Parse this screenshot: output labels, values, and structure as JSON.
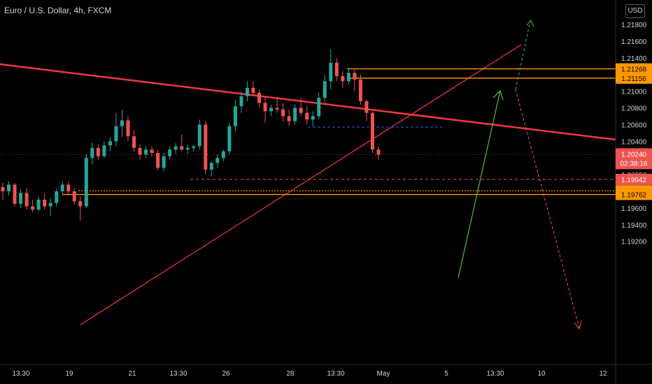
{
  "header": {
    "title": "Euro / U.S. Dollar, 4h, FXCM",
    "currency": "USD"
  },
  "colors": {
    "background": "#000000",
    "bull": "#26a69a",
    "bear": "#ef5350",
    "trendline": "#f23645",
    "orange": "#ff9800",
    "green": "#4caf50",
    "blue": "#2962ff",
    "text": "#d1d4dc"
  },
  "chart_data": {
    "type": "candlestick",
    "title": "Euro / U.S. Dollar, 4h, FXCM",
    "ylim": [
      1.191,
      1.2195
    ],
    "y_ticks": [
      "1.21800",
      "1.21600",
      "1.21400",
      "1.21200",
      "1.21000",
      "1.20800",
      "1.20600",
      "1.20400",
      "1.20200",
      "1.20000",
      "1.19800",
      "1.19600",
      "1.19400",
      "1.19200"
    ],
    "x_ticks": [
      "13:30",
      "19",
      "21",
      "13:30",
      "26",
      "28",
      "13:30",
      "May",
      "5",
      "13:30",
      "10",
      "12"
    ],
    "candles": [
      [
        1.1985,
        1.199,
        1.197,
        1.198
      ],
      [
        1.198,
        1.1992,
        1.1975,
        1.1988
      ],
      [
        1.1988,
        1.199,
        1.1962,
        1.1965
      ],
      [
        1.1965,
        1.1982,
        1.196,
        1.1978
      ],
      [
        1.1978,
        1.1984,
        1.1958,
        1.1962
      ],
      [
        1.1962,
        1.197,
        1.1955,
        1.1958
      ],
      [
        1.1958,
        1.1974,
        1.1956,
        1.197
      ],
      [
        1.197,
        1.1978,
        1.1958,
        1.1962
      ],
      [
        1.1962,
        1.1972,
        1.195,
        1.1966
      ],
      [
        1.1966,
        1.1983,
        1.1962,
        1.198
      ],
      [
        1.198,
        1.1992,
        1.1975,
        1.1988
      ],
      [
        1.1988,
        1.1992,
        1.1975,
        1.198
      ],
      [
        1.198,
        1.1984,
        1.1964,
        1.1968
      ],
      [
        1.1968,
        1.1974,
        1.1945,
        1.1962
      ],
      [
        1.1962,
        1.2025,
        1.196,
        1.202
      ],
      [
        1.202,
        1.2038,
        1.2012,
        1.2032
      ],
      [
        1.2032,
        1.2036,
        1.2018,
        1.2022
      ],
      [
        1.2022,
        1.204,
        1.202,
        1.2035
      ],
      [
        1.2035,
        1.2045,
        1.2028,
        1.204
      ],
      [
        1.204,
        1.2074,
        1.2034,
        1.2058
      ],
      [
        1.2058,
        1.2078,
        1.2045,
        1.2065
      ],
      [
        1.2065,
        1.207,
        1.204,
        1.2046
      ],
      [
        1.2046,
        1.2054,
        1.2028,
        1.2032
      ],
      [
        1.2032,
        1.2036,
        1.2018,
        1.2024
      ],
      [
        1.2024,
        1.2034,
        1.202,
        1.203
      ],
      [
        1.203,
        1.2034,
        1.2022,
        1.2026
      ],
      [
        1.2026,
        1.203,
        1.2005,
        1.2008
      ],
      [
        1.2008,
        1.2026,
        1.2004,
        1.2022
      ],
      [
        1.2022,
        1.2034,
        1.2018,
        1.203
      ],
      [
        1.203,
        1.2038,
        1.2025,
        1.2034
      ],
      [
        1.2034,
        1.2048,
        1.2028,
        1.203
      ],
      [
        1.203,
        1.2036,
        1.2025,
        1.2032
      ],
      [
        1.2032,
        1.2036,
        1.2028,
        1.2034
      ],
      [
        1.2034,
        1.2066,
        1.203,
        1.206
      ],
      [
        1.206,
        1.2064,
        1.2,
        1.2006
      ],
      [
        1.2006,
        1.2016,
        1.1998,
        1.2014
      ],
      [
        1.2014,
        1.2024,
        1.2008,
        1.202
      ],
      [
        1.202,
        1.203,
        1.2016,
        1.2028
      ],
      [
        1.2028,
        1.2062,
        1.2024,
        1.2058
      ],
      [
        1.2058,
        1.209,
        1.2052,
        1.2082
      ],
      [
        1.2082,
        1.21,
        1.2074,
        1.2094
      ],
      [
        1.2094,
        1.2112,
        1.2088,
        1.2104
      ],
      [
        1.2104,
        1.2112,
        1.2094,
        1.2098
      ],
      [
        1.2098,
        1.2102,
        1.208,
        1.2086
      ],
      [
        1.2086,
        1.2094,
        1.2062,
        1.2076
      ],
      [
        1.2076,
        1.2084,
        1.207,
        1.208
      ],
      [
        1.208,
        1.2092,
        1.2074,
        1.2078
      ],
      [
        1.2078,
        1.2086,
        1.2064,
        1.207
      ],
      [
        1.207,
        1.2078,
        1.2058,
        1.2064
      ],
      [
        1.2064,
        1.2084,
        1.206,
        1.208
      ],
      [
        1.208,
        1.2092,
        1.207,
        1.2074
      ],
      [
        1.2074,
        1.2082,
        1.206,
        1.2066
      ],
      [
        1.2066,
        1.2076,
        1.2058,
        1.207
      ],
      [
        1.207,
        1.2098,
        1.2066,
        1.2092
      ],
      [
        1.2092,
        1.212,
        1.2086,
        1.2112
      ],
      [
        1.2112,
        1.215,
        1.2102,
        1.2134
      ],
      [
        1.2134,
        1.214,
        1.2112,
        1.2118
      ],
      [
        1.2118,
        1.2124,
        1.2104,
        1.2112
      ],
      [
        1.2112,
        1.2128,
        1.2108,
        1.2122
      ],
      [
        1.2122,
        1.2126,
        1.21,
        1.2114
      ],
      [
        1.2114,
        1.212,
        1.2084,
        1.2088
      ],
      [
        1.2088,
        1.209,
        1.2064,
        1.2074
      ],
      [
        1.2074,
        1.2076,
        1.2026,
        1.203
      ],
      [
        1.203,
        1.2034,
        1.2018,
        1.2024
      ]
    ],
    "horizontal_levels": [
      {
        "value": 1.21268,
        "label": "1.21268",
        "style": "solid",
        "color": "#ff9800"
      },
      {
        "value": 1.21156,
        "label": "1.21156",
        "style": "solid",
        "color": "#ff9800"
      },
      {
        "value": 1.19806,
        "label": "1.19806",
        "style": "dotted",
        "color": "#ff9800"
      },
      {
        "value": 1.19762,
        "label": "1.19762",
        "style": "solid",
        "color": "#ff9800"
      },
      {
        "value": 1.19942,
        "label": "1.19942",
        "style": "dashed",
        "color": "#ef5350"
      },
      {
        "value": 1.2057,
        "label": "",
        "style": "dashed",
        "color": "#2962ff"
      }
    ],
    "last_price": {
      "value": 1.2024,
      "label": "1.20240",
      "countdown": "02:38:16"
    }
  }
}
